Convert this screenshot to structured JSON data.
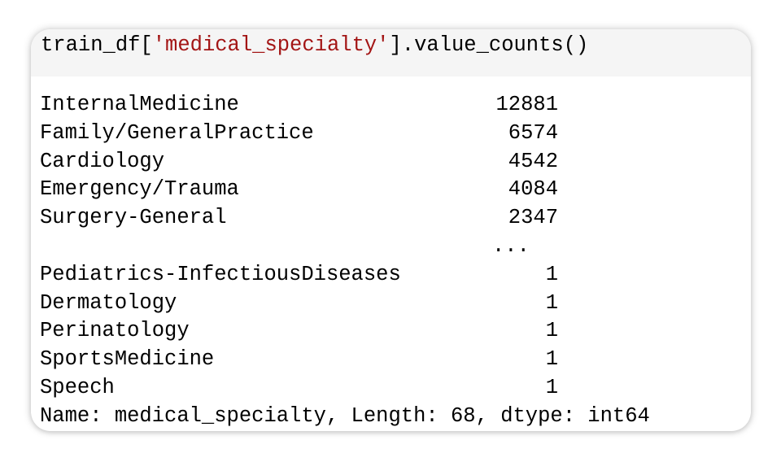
{
  "code": {
    "prefix": "train_df[",
    "string": "'medical_specialty'",
    "suffix": "].value_counts()"
  },
  "output": {
    "top_rows": [
      {
        "label": "InternalMedicine",
        "count": "12881"
      },
      {
        "label": "Family/GeneralPractice",
        "count": "6574"
      },
      {
        "label": "Cardiology",
        "count": "4542"
      },
      {
        "label": "Emergency/Trauma",
        "count": "4084"
      },
      {
        "label": "Surgery-General",
        "count": "2347"
      }
    ],
    "ellipsis": "...",
    "bottom_rows": [
      {
        "label": "Pediatrics-InfectiousDiseases",
        "count": "1"
      },
      {
        "label": "Dermatology",
        "count": "1"
      },
      {
        "label": "Perinatology",
        "count": "1"
      },
      {
        "label": "SportsMedicine",
        "count": "1"
      },
      {
        "label": "Speech",
        "count": "1"
      }
    ],
    "footer": "Name: medical_specialty, Length: 68, dtype: int64"
  }
}
